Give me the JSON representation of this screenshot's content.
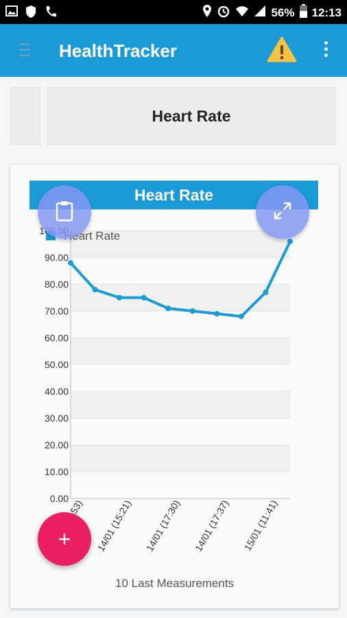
{
  "status_bar": {
    "battery_text": "56%",
    "time": "12:13",
    "icons": [
      "image-icon",
      "shield-icon",
      "phone-icon",
      "location-icon",
      "alarm-icon",
      "wifi-icon",
      "signal-icon",
      "battery-icon"
    ]
  },
  "app_bar": {
    "title": "HealthTracker",
    "menu_icon": "hamburger-icon",
    "warning_icon": "warning-icon",
    "more_icon": "more-vert-icon"
  },
  "tabs": [
    {
      "label": ""
    },
    {
      "label": "Heart Rate"
    }
  ],
  "chart_data": {
    "type": "line",
    "title": "Heart Rate",
    "legend": [
      "Heart Rate"
    ],
    "legend_placement": "top-left",
    "xlabel": "10 Last Measurements",
    "ylabel": "",
    "ylim": [
      0,
      100
    ],
    "yticks": [
      "0.00",
      "10.00",
      "20.00",
      "30.00",
      "40.00",
      "50.00",
      "60.00",
      "70.00",
      "80.00",
      "90.00",
      "100.00"
    ],
    "x_tick_labels": [
      "53)",
      "14/01 (15:21)",
      "14/01 (17:30)",
      "14/01 (17:37)",
      "15/01 (11:41)"
    ],
    "series": [
      {
        "name": "Heart Rate",
        "values": [
          88,
          78,
          75,
          75,
          71,
          70,
          69,
          68,
          77,
          96
        ]
      }
    ],
    "grid": true,
    "color": "#1a9bd7"
  },
  "fab": {
    "clipboard_icon": "clipboard-icon",
    "expand_icon": "expand-icon",
    "add_label": "+"
  }
}
